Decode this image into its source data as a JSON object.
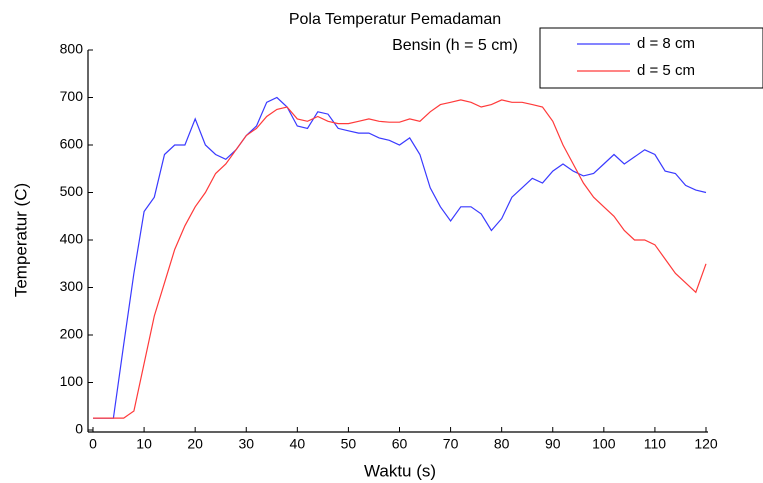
{
  "chart_data": {
    "type": "line",
    "title": "Pola Temperatur Pemadaman",
    "subtitle": "Bensin (h = 5 cm)",
    "x_label": "Waktu (s)",
    "y_label": "Temperatur (C)",
    "x": [
      0,
      2,
      4,
      6,
      8,
      10,
      12,
      14,
      16,
      18,
      20,
      22,
      24,
      26,
      28,
      30,
      32,
      34,
      36,
      38,
      40,
      42,
      44,
      46,
      48,
      50,
      52,
      54,
      56,
      58,
      60,
      62,
      64,
      66,
      68,
      70,
      72,
      74,
      76,
      78,
      80,
      82,
      84,
      86,
      88,
      90,
      92,
      94,
      96,
      98,
      100,
      102,
      104,
      106,
      108,
      110,
      112,
      114,
      116,
      118,
      120
    ],
    "series": [
      {
        "name": "d = 8 cm",
        "color": "#3a3aff",
        "values": [
          25,
          25,
          25,
          180,
          330,
          460,
          490,
          580,
          600,
          600,
          655,
          600,
          580,
          570,
          590,
          620,
          640,
          690,
          700,
          680,
          640,
          635,
          670,
          665,
          635,
          630,
          625,
          625,
          615,
          610,
          600,
          615,
          580,
          510,
          470,
          440,
          470,
          470,
          455,
          420,
          445,
          490,
          510,
          530,
          520,
          545,
          560,
          545,
          535,
          540,
          560,
          580,
          560,
          575,
          590,
          580,
          545,
          540,
          515,
          505,
          500
        ]
      },
      {
        "name": "d = 5 cm",
        "color": "#ff3a3a",
        "values": [
          25,
          25,
          25,
          25,
          40,
          140,
          240,
          310,
          380,
          430,
          470,
          500,
          540,
          560,
          590,
          620,
          635,
          660,
          675,
          680,
          655,
          650,
          660,
          650,
          645,
          645,
          650,
          655,
          650,
          648,
          648,
          655,
          650,
          670,
          685,
          690,
          695,
          690,
          680,
          685,
          695,
          690,
          690,
          685,
          680,
          650,
          600,
          560,
          520,
          490,
          470,
          450,
          420,
          400,
          400,
          390,
          360,
          330,
          310,
          290,
          350
        ]
      }
    ],
    "xlim": [
      0,
      120
    ],
    "ylim": [
      0,
      800
    ],
    "xticks": [
      0,
      10,
      20,
      30,
      40,
      50,
      60,
      70,
      80,
      90,
      100,
      110,
      120
    ],
    "yticks": [
      0,
      100,
      200,
      300,
      400,
      500,
      600,
      700,
      800
    ],
    "legend": "upper right",
    "grid": false
  }
}
